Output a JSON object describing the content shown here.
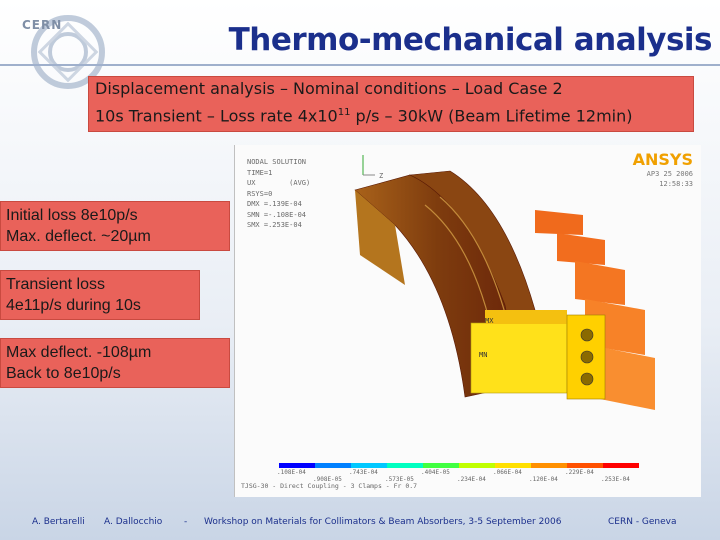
{
  "header": {
    "logo_text": "CERN",
    "title": "Thermo-mechanical analysis"
  },
  "banner": {
    "line1": "Displacement analysis – Nominal conditions – Load Case 2",
    "line2_pre": "10s Transient – Loss rate 4x10",
    "line2_sup": "11",
    "line2_post": " p/s – 30kW (Beam Lifetime 12min)"
  },
  "callouts": [
    {
      "line1": "Initial loss 8e10p/s",
      "line2": "Max. deflect. ~20µm"
    },
    {
      "line1": "Transient loss",
      "line2": "4e11p/s during 10s"
    },
    {
      "line1": "Max deflect. -108µm",
      "line2": "Back to 8e10p/s"
    }
  ],
  "plot": {
    "info_lines": [
      "NODAL SOLUTION",
      "",
      "TIME=1",
      "UX        (AVG)",
      "RSYS=0",
      "DMX =.139E-04",
      "SMN =-.108E-04",
      "SMX =.253E-04"
    ],
    "brand": "ANSYS",
    "date": "AP3 25 2006",
    "time": "12:58:33",
    "triad_label": "Z",
    "node_labels": [
      "MN",
      "MX"
    ],
    "colorbar_labels": [
      ".108E-04",
      ".908E-05",
      ".743E-04",
      ".573E-05",
      ".404E-05",
      ".234E-04",
      ".066E-04",
      ".120E-04",
      ".229E-04",
      ".253E-04"
    ],
    "caption": "TJSG-30 - Direct Coupling - 3 Clamps - Fr 0.7",
    "colorbar_colors": [
      "#0000ff",
      "#0080ff",
      "#00c8ff",
      "#00ffc0",
      "#40ff40",
      "#c0ff00",
      "#ffe000",
      "#ff9000",
      "#ff5000",
      "#ff0000"
    ]
  },
  "footer": {
    "author1": "A. Bertarelli",
    "author2": "A. Dallocchio",
    "dash": "-",
    "workshop": "Workshop on Materials for Collimators & Beam Absorbers,",
    "dates": " 3-5 September 2006",
    "place": "CERN - Geneva"
  }
}
